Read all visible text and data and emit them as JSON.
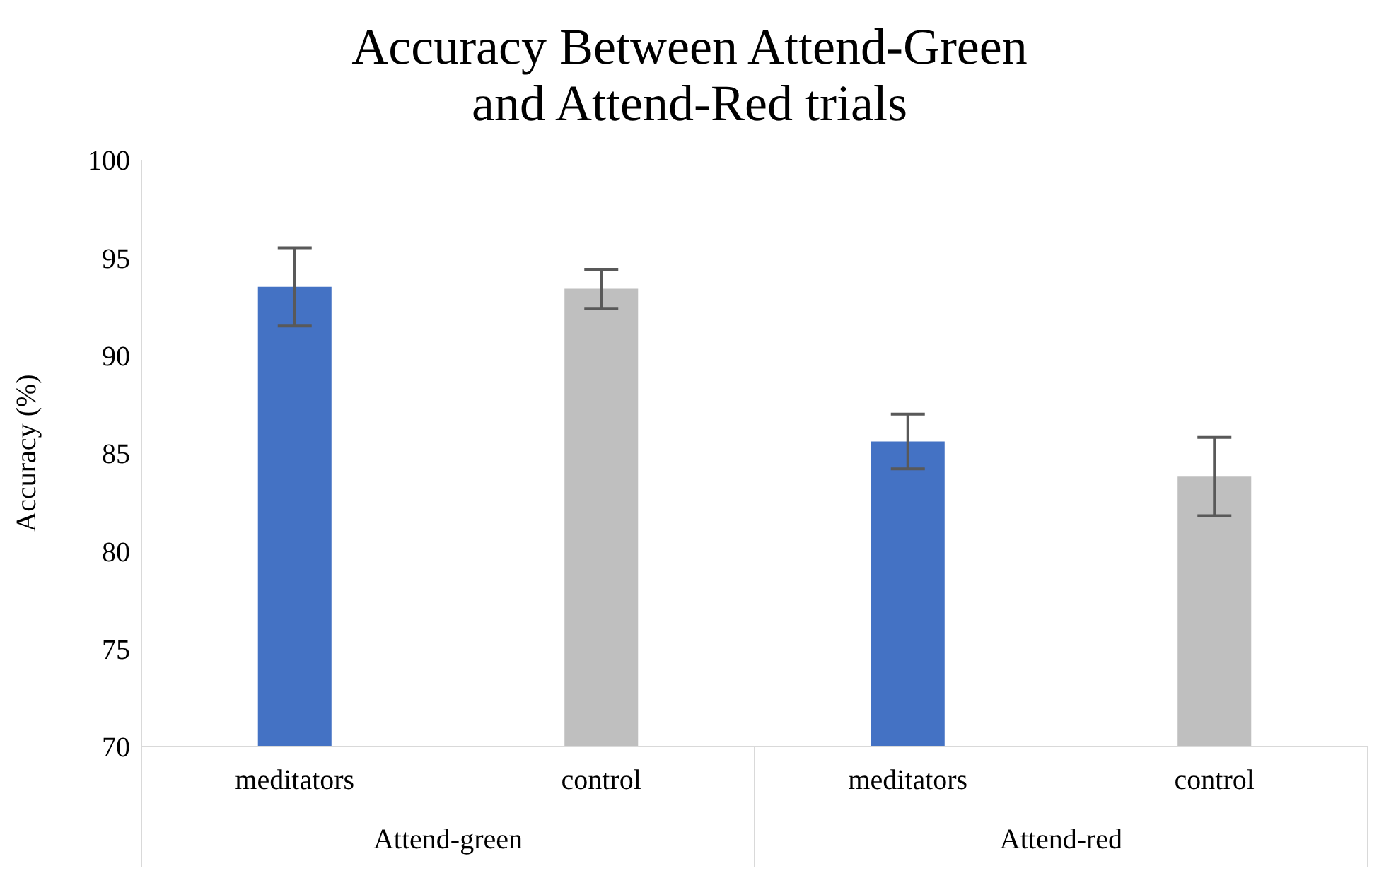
{
  "chart_data": {
    "type": "bar",
    "title": "Accuracy Between Attend-Green and Attend-Red trials",
    "ylabel": "Accuracy (%)",
    "categories": [
      "meditators",
      "control",
      "meditators",
      "control"
    ],
    "values": [
      93.5,
      93.4,
      85.6,
      83.8
    ],
    "errors": [
      2,
      1,
      1.4,
      2
    ],
    "colors": [
      "#4472c4",
      "#bfbfbf",
      "#4472c4",
      "#bfbfbf"
    ],
    "ylim": [
      70,
      100
    ],
    "yticks": [
      70,
      75,
      80,
      85,
      90,
      95,
      100
    ],
    "annotations": [
      "Attend-green",
      "Attend-red"
    ],
    "grid": false,
    "legend": false
  }
}
